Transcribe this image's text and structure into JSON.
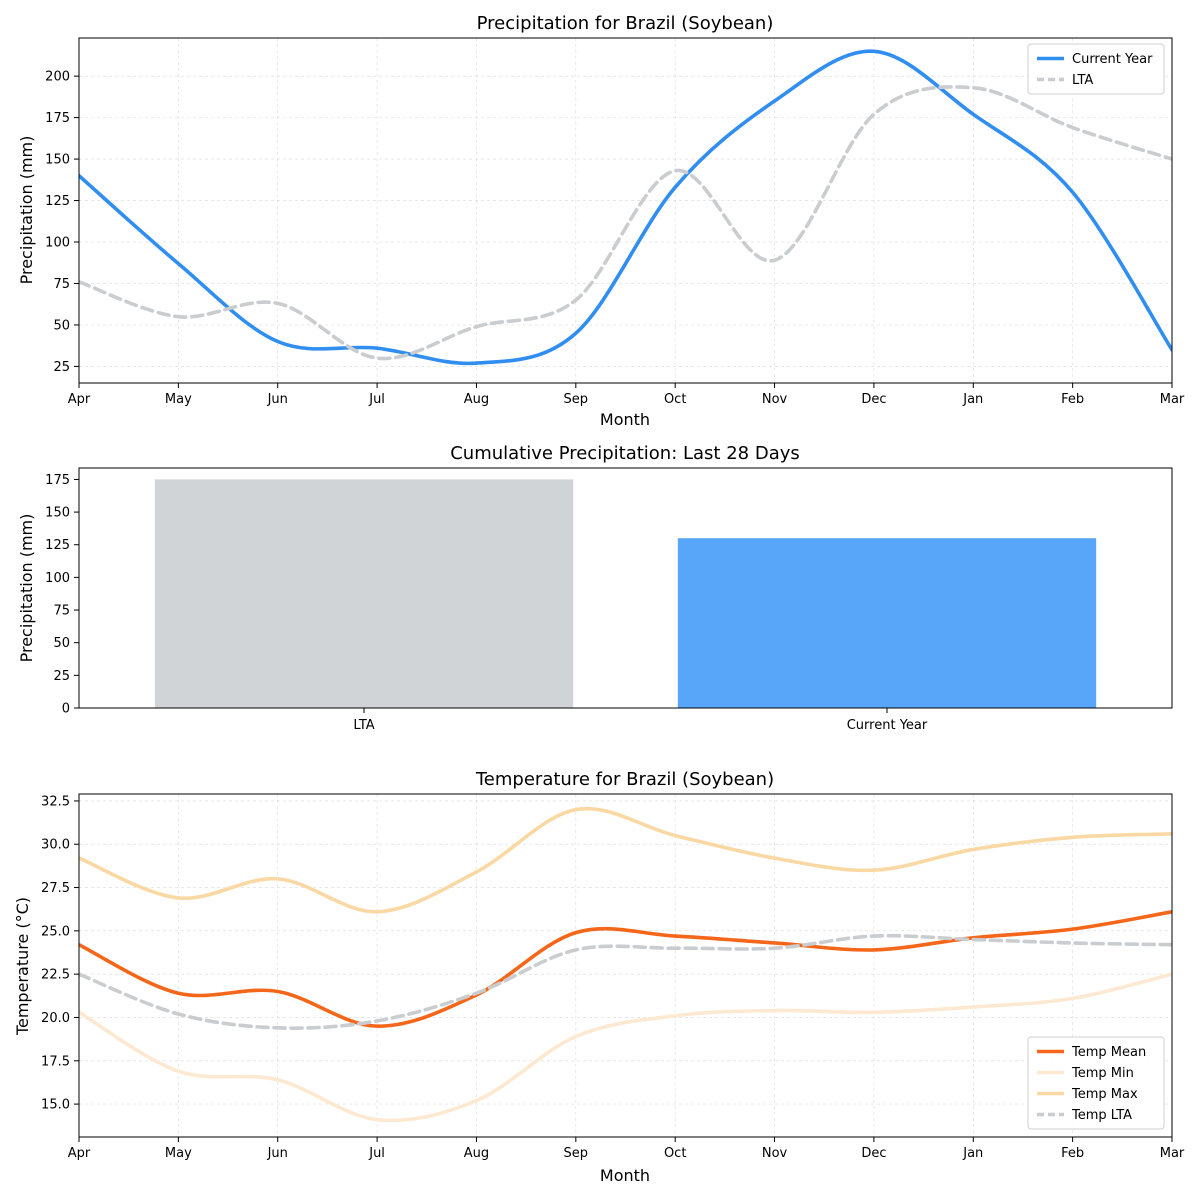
{
  "colors": {
    "current_year": "#308ef0",
    "lta": "#c9cdd0",
    "bar_lta": "#d0d4d7",
    "bar_current": "#58a6fa",
    "temp_mean": "#f4661a",
    "temp_min": "#fde8d1",
    "temp_max": "#fad8a3",
    "temp_lta": "#c9cdd0"
  },
  "chart_data": [
    {
      "type": "line",
      "title": "Precipitation for Brazil (Soybean)",
      "xlabel": "Month",
      "ylabel": "Precipitation (mm)",
      "x_ticks": [
        "Apr",
        "May",
        "Jun",
        "Jul",
        "Aug",
        "Sep",
        "Oct",
        "Nov",
        "Dec",
        "Jan",
        "Feb",
        "Mar"
      ],
      "ylim": [
        15,
        223
      ],
      "y_ticks": [
        25,
        50,
        75,
        100,
        125,
        150,
        175,
        200
      ],
      "grid": true,
      "legend_position": "top-right",
      "series": [
        {
          "name": "Current Year",
          "style": "solid",
          "color_key": "current_year",
          "values": [
            140,
            87,
            40,
            36,
            27,
            45,
            133,
            185,
            215,
            177,
            130,
            35
          ]
        },
        {
          "name": "LTA",
          "style": "dashed",
          "color_key": "lta",
          "values": [
            76,
            55,
            63,
            30,
            49,
            65,
            143,
            89,
            177,
            193,
            169,
            150
          ]
        }
      ]
    },
    {
      "type": "bar",
      "title": "Cumulative Precipitation: Last 28 Days",
      "xlabel": "",
      "ylabel": "Precipitation (mm)",
      "categories": [
        "LTA",
        "Current Year"
      ],
      "values": [
        175,
        130
      ],
      "color_keys": [
        "bar_lta",
        "bar_current"
      ],
      "ylim": [
        0,
        183.75
      ],
      "y_ticks": [
        0,
        25,
        50,
        75,
        100,
        125,
        150,
        175
      ],
      "grid": false
    },
    {
      "type": "line",
      "title": "Temperature for Brazil (Soybean)",
      "xlabel": "Month",
      "ylabel": "Temperature (°C)",
      "x_ticks": [
        "Apr",
        "May",
        "Jun",
        "Jul",
        "Aug",
        "Sep",
        "Oct",
        "Nov",
        "Dec",
        "Jan",
        "Feb",
        "Mar"
      ],
      "ylim": [
        13.1,
        32.9
      ],
      "y_ticks": [
        15.0,
        17.5,
        20.0,
        22.5,
        25.0,
        27.5,
        30.0,
        32.5
      ],
      "grid": true,
      "legend_position": "bottom-right",
      "series": [
        {
          "name": "Temp Mean",
          "style": "solid",
          "color_key": "temp_mean",
          "values": [
            24.2,
            21.4,
            21.5,
            19.5,
            21.3,
            24.9,
            24.7,
            24.3,
            23.9,
            24.6,
            25.1,
            26.1
          ]
        },
        {
          "name": "Temp Min",
          "style": "solid",
          "color_key": "temp_min",
          "values": [
            20.3,
            16.9,
            16.4,
            14.1,
            15.2,
            18.9,
            20.1,
            20.4,
            20.3,
            20.6,
            21.1,
            22.5
          ]
        },
        {
          "name": "Temp Max",
          "style": "solid",
          "color_key": "temp_max",
          "values": [
            29.2,
            26.9,
            28.0,
            26.1,
            28.4,
            32.0,
            30.5,
            29.2,
            28.5,
            29.7,
            30.4,
            30.6
          ]
        },
        {
          "name": "Temp LTA",
          "style": "dashed",
          "color_key": "temp_lta",
          "values": [
            22.5,
            20.2,
            19.4,
            19.8,
            21.4,
            23.9,
            24.0,
            24.0,
            24.7,
            24.5,
            24.3,
            24.2
          ]
        }
      ]
    }
  ]
}
